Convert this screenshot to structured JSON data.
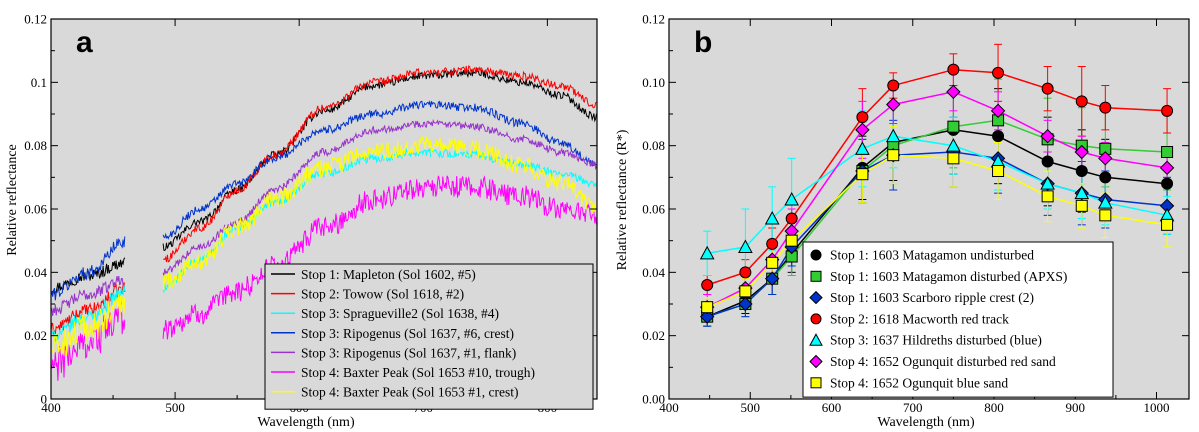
{
  "chart_data": [
    {
      "type": "line",
      "panel_label": "a",
      "xlabel": "Wavelength (nm)",
      "ylabel": "Relative reflectance",
      "xlim": [
        400,
        840
      ],
      "ylim": [
        0,
        0.12
      ],
      "xticks": [
        400,
        500,
        600,
        700,
        800
      ],
      "yticks": [
        0,
        0.02,
        0.04,
        0.06,
        0.08,
        0.1,
        0.12
      ],
      "xtick_labels": [
        "400",
        "500",
        "600",
        "700",
        "800"
      ],
      "ytick_labels": [
        "0",
        "0.02",
        "0.04",
        "0.06",
        "0.08",
        "0.1",
        "0.12"
      ],
      "grid": false,
      "legend_position": "bottom-right",
      "background": "#d9d9d9",
      "gap_nm": [
        460,
        490
      ],
      "series": [
        {
          "name": "Stop 1: Mapleton (Sol 1602, #5)",
          "color": "#000000",
          "noise": 0.0012,
          "x": [
            400,
            430,
            460,
            490,
            520,
            550,
            580,
            620,
            660,
            700,
            740,
            780,
            810,
            840
          ],
          "y": [
            0.035,
            0.039,
            0.043,
            0.048,
            0.056,
            0.066,
            0.077,
            0.091,
            0.099,
            0.102,
            0.103,
            0.1,
            0.096,
            0.089
          ]
        },
        {
          "name": "Stop 2: Towow (Sol 1618, #2)",
          "color": "#ff0000",
          "noise": 0.0013,
          "x": [
            400,
            430,
            460,
            490,
            520,
            550,
            580,
            620,
            660,
            700,
            740,
            780,
            810,
            840
          ],
          "y": [
            0.022,
            0.028,
            0.035,
            0.044,
            0.054,
            0.066,
            0.077,
            0.092,
            0.1,
            0.103,
            0.104,
            0.102,
            0.099,
            0.093
          ]
        },
        {
          "name": "Stop 3: Spragueville2 (Sol 1638, #4)",
          "color": "#00ffff",
          "noise": 0.0013,
          "x": [
            400,
            430,
            460,
            490,
            520,
            550,
            580,
            620,
            660,
            700,
            740,
            780,
            810,
            840
          ],
          "y": [
            0.02,
            0.026,
            0.034,
            0.035,
            0.044,
            0.054,
            0.062,
            0.071,
            0.076,
            0.078,
            0.077,
            0.074,
            0.071,
            0.068
          ]
        },
        {
          "name": "Stop 3: Ripogenus (Sol 1637, #6, crest)",
          "color": "#0033cc",
          "noise": 0.0013,
          "x": [
            400,
            430,
            460,
            490,
            520,
            550,
            580,
            620,
            660,
            700,
            740,
            780,
            810,
            840
          ],
          "y": [
            0.033,
            0.04,
            0.05,
            0.051,
            0.06,
            0.068,
            0.076,
            0.085,
            0.09,
            0.093,
            0.092,
            0.087,
            0.081,
            0.074
          ]
        },
        {
          "name": "Stop 3: Ripogenus (Sol 1637, #1, flank)",
          "color": "#9933cc",
          "noise": 0.0012,
          "x": [
            400,
            430,
            460,
            490,
            520,
            550,
            580,
            620,
            660,
            700,
            740,
            780,
            810,
            840
          ],
          "y": [
            0.028,
            0.033,
            0.038,
            0.04,
            0.048,
            0.056,
            0.066,
            0.078,
            0.085,
            0.087,
            0.086,
            0.082,
            0.078,
            0.074
          ]
        },
        {
          "name": "Stop 4: Baxter Peak (Sol 1653 #10, trough)",
          "color": "#ff00ff",
          "noise": 0.0035,
          "x": [
            400,
            430,
            460,
            490,
            520,
            550,
            580,
            620,
            660,
            700,
            740,
            780,
            810,
            840
          ],
          "y": [
            0.01,
            0.018,
            0.026,
            0.022,
            0.027,
            0.034,
            0.042,
            0.054,
            0.063,
            0.067,
            0.067,
            0.064,
            0.06,
            0.058
          ]
        },
        {
          "name": "Stop 4: Baxter Peak (Sol 1653 #1, crest)",
          "color": "#ffff00",
          "noise": 0.003,
          "x": [
            400,
            430,
            460,
            490,
            520,
            550,
            580,
            620,
            660,
            700,
            740,
            780,
            810,
            840
          ],
          "y": [
            0.016,
            0.022,
            0.03,
            0.037,
            0.044,
            0.054,
            0.063,
            0.073,
            0.078,
            0.08,
            0.079,
            0.074,
            0.068,
            0.06
          ]
        }
      ]
    },
    {
      "type": "line",
      "panel_label": "b",
      "xlabel": "Wavelength (nm)",
      "ylabel": "Relative reflectance (R*)",
      "xlim": [
        400,
        1040
      ],
      "ylim": [
        0,
        0.12
      ],
      "xticks": [
        400,
        500,
        600,
        700,
        800,
        900,
        1000
      ],
      "yticks": [
        0,
        0.02,
        0.04,
        0.06,
        0.08,
        0.1,
        0.12
      ],
      "xtick_labels": [
        "400",
        "500",
        "600",
        "700",
        "800",
        "900",
        "1000"
      ],
      "ytick_labels": [
        "0.00",
        "0.02",
        "0.04",
        "0.06",
        "0.08",
        "0.10",
        "0.12"
      ],
      "grid": false,
      "legend_position": "bottom-center",
      "background": "#d9d9d9",
      "x": [
        447,
        494,
        527,
        551,
        638,
        676,
        750,
        805,
        866,
        908,
        937,
        1013
      ],
      "series": [
        {
          "name": "Stop 1: 1603 Matagamon undisturbed",
          "color": "#000000",
          "marker": "circle",
          "y": [
            0.026,
            0.031,
            0.038,
            0.046,
            0.073,
            0.081,
            0.085,
            0.083,
            0.075,
            0.072,
            0.07,
            0.068
          ],
          "err": [
            0.003,
            0.004,
            0.005,
            0.006,
            0.01,
            0.012,
            0.014,
            0.015,
            0.014,
            0.013,
            0.012,
            0.011
          ]
        },
        {
          "name": "Stop 1: 1603 Matagamon disturbed (APXS)",
          "color": "#33cc33",
          "marker": "square",
          "y": [
            0.026,
            0.03,
            0.038,
            0.045,
            0.072,
            0.08,
            0.086,
            0.088,
            0.082,
            0.08,
            0.079,
            0.078
          ],
          "err": [
            0.003,
            0.004,
            0.005,
            0.006,
            0.01,
            0.012,
            0.013,
            0.013,
            0.013,
            0.012,
            0.012,
            0.012
          ]
        },
        {
          "name": "Stop 1: 1603 Scarboro ripple crest (2)",
          "color": "#0033cc",
          "marker": "diamond",
          "y": [
            0.026,
            0.03,
            0.038,
            0.048,
            0.072,
            0.077,
            0.078,
            0.076,
            0.068,
            0.065,
            0.063,
            0.061
          ],
          "err": [
            0.003,
            0.004,
            0.005,
            0.006,
            0.01,
            0.011,
            0.011,
            0.011,
            0.01,
            0.01,
            0.009,
            0.009
          ]
        },
        {
          "name": "Stop 2: 1618 Macworth red track",
          "color": "#ff0000",
          "marker": "circle",
          "y": [
            0.036,
            0.04,
            0.049,
            0.057,
            0.089,
            0.099,
            0.104,
            0.103,
            0.098,
            0.094,
            0.092,
            0.091
          ],
          "err": [
            0.003,
            0.004,
            0.005,
            0.006,
            0.009,
            0.004,
            0.005,
            0.009,
            0.007,
            0.011,
            0.007,
            0.007
          ]
        },
        {
          "name": "Stop 3: 1637 Hildreths disturbed (blue)",
          "color": "#00ffff",
          "marker": "triangle",
          "y": [
            0.046,
            0.048,
            0.057,
            0.063,
            0.079,
            0.083,
            0.08,
            0.075,
            0.068,
            0.065,
            0.062,
            0.058
          ],
          "err": [
            0.007,
            0.012,
            0.01,
            0.013,
            0.012,
            0.01,
            0.009,
            0.009,
            0.008,
            0.008,
            0.007,
            0.006
          ]
        },
        {
          "name": "Stop 4: 1652 Ogunquit disturbed red sand",
          "color": "#ff00ff",
          "marker": "diamond",
          "y": [
            0.029,
            0.035,
            0.044,
            0.053,
            0.085,
            0.093,
            0.097,
            0.091,
            0.083,
            0.078,
            0.076,
            0.073
          ],
          "err": [
            0.004,
            0.005,
            0.006,
            0.007,
            0.009,
            0.006,
            0.006,
            0.006,
            0.005,
            0.005,
            0.005,
            0.005
          ]
        },
        {
          "name": "Stop 4: 1652 Ogunquit blue sand",
          "color": "#ffff00",
          "marker": "square",
          "y": [
            0.029,
            0.034,
            0.043,
            0.05,
            0.071,
            0.077,
            0.076,
            0.072,
            0.064,
            0.061,
            0.058,
            0.055
          ],
          "err": [
            0.003,
            0.004,
            0.005,
            0.006,
            0.009,
            0.009,
            0.009,
            0.009,
            0.008,
            0.007,
            0.007,
            0.007
          ]
        }
      ]
    }
  ]
}
